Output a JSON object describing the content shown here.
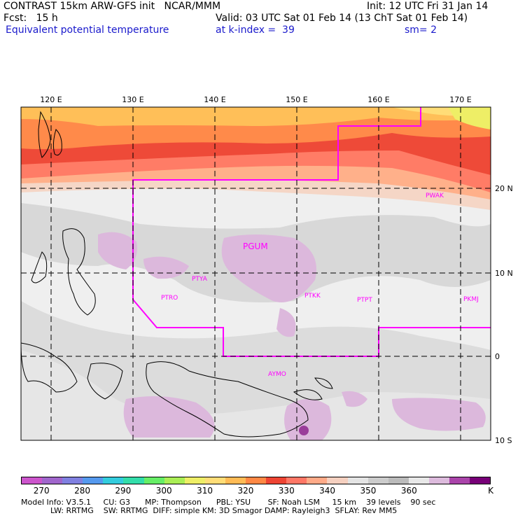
{
  "header": {
    "line1_left": "CONTRAST 15km ARW-GFS init   NCAR/MMM",
    "line1_right": "Init: 12 UTC Fri 31 Jan 14",
    "line2_fcst": "Fcst:   15 h",
    "line2_valid": "Valid: 03 UTC Sat 01 Feb 14 (13 ChT Sat 01 Feb 14)",
    "line3_field": "Equivalent potential temperature",
    "line3_level": "at k-index =  39",
    "line3_sm": "sm= 2"
  },
  "map": {
    "lon_labels": [
      "120 E",
      "130 E",
      "140 E",
      "150 E",
      "160 E",
      "170 E"
    ],
    "lat_labels": [
      "20 N",
      "10 N",
      "0",
      "10 S"
    ],
    "stations": [
      "PWAK",
      "PGUM",
      "PTYA",
      "PTRO",
      "PTKK",
      "PTPT",
      "PKMJ",
      "AYMO"
    ]
  },
  "colorbar": {
    "colors": [
      "#cc55cc",
      "#a066cc",
      "#8080e0",
      "#5599ee",
      "#33ccdd",
      "#33ddaa",
      "#66ee66",
      "#aaee55",
      "#eeee66",
      "#ffdd77",
      "#ffbb55",
      "#ff8844",
      "#ee4433",
      "#ff7766",
      "#ffaa88",
      "#f5d0c0",
      "#e4e4e4",
      "#cccccc",
      "#bbbbbb",
      "#e8e8e8",
      "#ddbbdd",
      "#aa44aa",
      "#770077"
    ],
    "labels": [
      "270",
      "280",
      "290",
      "300",
      "310",
      "320",
      "330",
      "340",
      "350",
      "360"
    ],
    "unit": "K"
  },
  "model_info": {
    "line1": "Model Info: V3.5.1     CU: G3      MP: Thompson      PBL: YSU       SF: Noah LSM     15 km    39 levels    90 sec",
    "line2": "            LW: RRTMG    SW: RRTMG  DIFF: simple KM: 3D Smagor DAMP: Rayleigh3  SFLAY: Rev MM5"
  }
}
